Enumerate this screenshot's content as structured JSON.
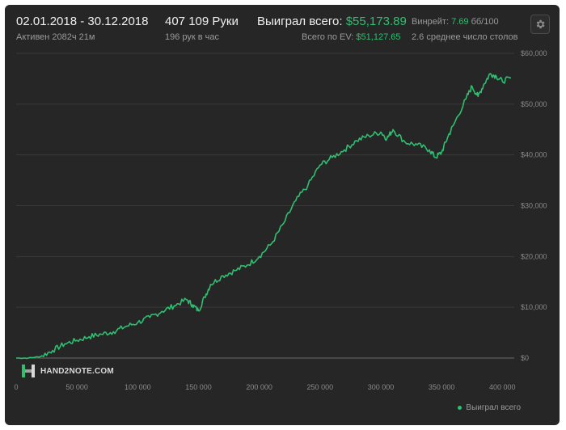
{
  "header": {
    "date_range": "02.01.2018 - 30.12.2018",
    "active_time": "Активен 2082ч 21м",
    "hands": "407 109 Руки",
    "hands_per_hour": "196 рук в час",
    "won_label": "Выиграл всего:",
    "won_value": "$55,173.89",
    "ev_label": "Всего по EV:",
    "ev_value": "$51,127.65",
    "winrate_label": "Винрейт:",
    "winrate_value": "7.69",
    "winrate_unit": "бб/100",
    "tables_avg": "2.6 среднее число столов",
    "settings_icon": "gear-icon"
  },
  "logo": {
    "text": "HAND2NOTE.COM",
    "icon": "h2n-logo-icon"
  },
  "colors": {
    "background": "#262626",
    "line": "#2fbf71",
    "grid": "#3a3a3a"
  },
  "chart_data": {
    "type": "line",
    "title": "",
    "xlabel": "",
    "ylabel": "",
    "xlim": [
      0,
      407109
    ],
    "ylim": [
      0,
      60000
    ],
    "x_ticks": [
      "0",
      "50 000",
      "100 000",
      "150 000",
      "200 000",
      "250 000",
      "300 000",
      "350 000",
      "400 000"
    ],
    "x_tick_values": [
      0,
      50000,
      100000,
      150000,
      200000,
      250000,
      300000,
      350000,
      400000
    ],
    "y_ticks": [
      "$0",
      "$10,000",
      "$20,000",
      "$30,000",
      "$40,000",
      "$50,000",
      "$60,000"
    ],
    "y_tick_values": [
      0,
      10000,
      20000,
      30000,
      40000,
      50000,
      60000
    ],
    "grid": true,
    "legend_position": "bottom-right",
    "series": [
      {
        "name": "Выиграл всего",
        "x": [
          0,
          10000,
          20000,
          30000,
          40000,
          50000,
          60000,
          70000,
          80000,
          90000,
          100000,
          110000,
          120000,
          130000,
          140000,
          145000,
          150000,
          155000,
          160000,
          170000,
          180000,
          190000,
          200000,
          210000,
          220000,
          230000,
          240000,
          250000,
          260000,
          270000,
          280000,
          290000,
          300000,
          305000,
          310000,
          320000,
          330000,
          340000,
          345000,
          350000,
          355000,
          360000,
          370000,
          375000,
          380000,
          385000,
          390000,
          395000,
          400000,
          407109
        ],
        "y": [
          0,
          0,
          300,
          1500,
          2800,
          3500,
          4200,
          4700,
          5200,
          6200,
          7000,
          8000,
          9200,
          10300,
          11500,
          10500,
          9300,
          12000,
          14500,
          16200,
          17200,
          18300,
          20000,
          22500,
          26500,
          31000,
          34000,
          38000,
          39500,
          41000,
          42800,
          43800,
          44500,
          43200,
          45000,
          42500,
          42000,
          41000,
          39500,
          40500,
          43500,
          46000,
          51000,
          53500,
          51500,
          54000,
          56000,
          55500,
          54500,
          55174
        ]
      }
    ]
  }
}
